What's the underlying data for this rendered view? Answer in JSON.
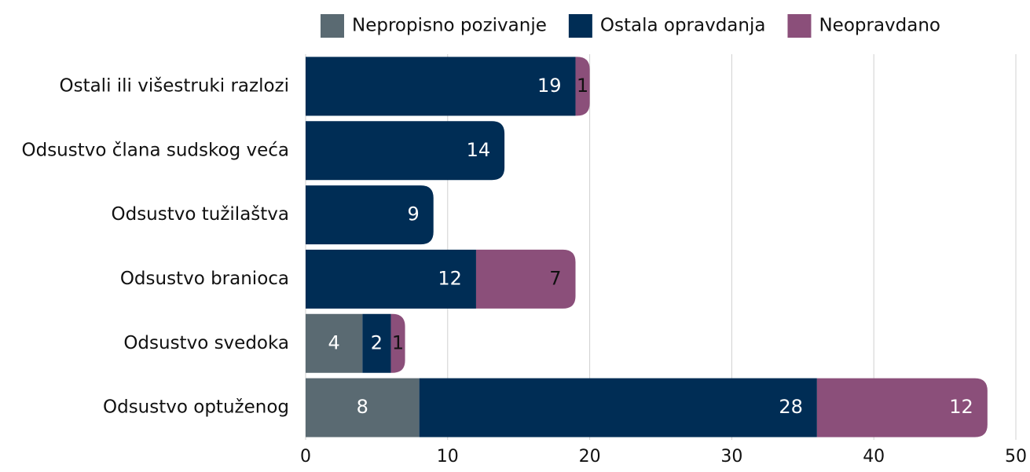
{
  "chart_data": {
    "type": "stacked-barh",
    "categories": [
      "Ostali ili višestruki razlozi",
      "Odsustvo člana sudskog veća",
      "Odsustvo tužilaštva",
      "Odsustvo branioca",
      "Odsustvo svedoka",
      "Odsustvo optuženog"
    ],
    "series": [
      {
        "name": "Nepropisno pozivanje",
        "color": "#5a6a72",
        "values": [
          null,
          null,
          null,
          null,
          4,
          8
        ]
      },
      {
        "name": "Ostala opravdanja",
        "color": "#002d55",
        "values": [
          19,
          14,
          9,
          12,
          2,
          28
        ]
      },
      {
        "name": "Neopravdano",
        "color": "#8b4f7a",
        "values": [
          1,
          null,
          null,
          7,
          1,
          12
        ]
      }
    ],
    "xlim": [
      0,
      50
    ],
    "xticks": [
      0,
      10,
      20,
      30,
      40,
      50
    ],
    "grid": true,
    "legend": "top"
  }
}
